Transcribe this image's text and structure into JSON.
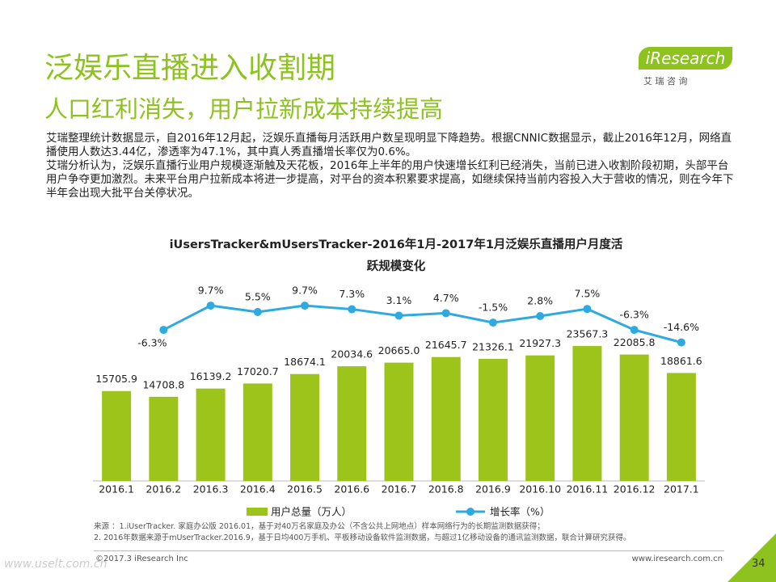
{
  "header": {
    "title": "泛娱乐直播进入收割期",
    "subtitle": "人口红利消失，用户拉新成本持续提高",
    "logo": "iResearch",
    "logo_sub": "艾 瑞 咨 询"
  },
  "body": [
    "艾瑞整理统计数据显示，自2016年12月起，泛娱乐直播每月活跃用户数呈现明显下降趋势。根据CNNIC数据显示，截止2016年12月，网络直播使用人数达3.44亿，渗透率为47.1%，其中真人秀直播增长率仅为0.6%。",
    "艾瑞分析认为，泛娱乐直播行业用户规模逐渐触及天花板，2016年上半年的用户快速增长红利已经消失，当前已进入收割阶段初期，头部平台用户争夺更加激烈。未来平台用户拉新成本将进一步提高，对平台的资本积累要求提高，如继续保持当前内容投入大于营收的情况，则在今年下半年会出现大批平台关停状况。"
  ],
  "chart_data": {
    "type": "bar",
    "title": "iUsersTracker&mUsersTracker-2016年1月-2017年1月泛娱乐直播用户月度活跃规模变化",
    "categories": [
      "2016.1",
      "2016.2",
      "2016.3",
      "2016.4",
      "2016.5",
      "2016.6",
      "2016.7",
      "2016.8",
      "2016.9",
      "2016.10",
      "2016.11",
      "2016.12",
      "2017.1"
    ],
    "series": [
      {
        "name": "用户总量（万人）",
        "color": "#9dc41a",
        "type": "bar",
        "values": [
          15705.9,
          14708.8,
          16139.2,
          17020.7,
          18674.1,
          20034.6,
          20665,
          21645.7,
          21326.1,
          21927.3,
          23567.3,
          22085.8,
          18861.6
        ],
        "value_labels": [
          "15705.9",
          "14708.8",
          "16139.2",
          "17020.7",
          "18674.1",
          "20034.6",
          "20665.0",
          "21645.7",
          "21326.1",
          "21927.3",
          "23567.3",
          "22085.8",
          "18861.6"
        ]
      },
      {
        "name": "增长率（%）",
        "color": "#2eaae1",
        "type": "line",
        "axis": "y2",
        "values": [
          null,
          -6.3,
          9.7,
          5.5,
          9.7,
          7.3,
          3.1,
          4.7,
          -1.5,
          2.8,
          7.5,
          -6.3,
          -14.6
        ],
        "value_labels": [
          null,
          "-6.3%",
          "9.7%",
          "5.5%",
          "9.7%",
          "7.3%",
          "3.1%",
          "4.7%",
          "-1.5%",
          "2.8%",
          "7.5%",
          "-6.3%",
          "-14.6%"
        ]
      }
    ],
    "ylim": [
      0,
      36000
    ],
    "y2lim": [
      -106,
      30
    ],
    "legend": "bottom"
  },
  "footer": {
    "sources": [
      "来源 ：1.iUserTracker. 家庭办公版 2016.01，基于对40万名家庭及办公（不含公共上网地点）样本网络行为的长期监测数据获得；",
      "2. 2016年数据来源于mUserTracker.2016.9，基于日均400万手机、平板移动设备软件监测数据，与超过1亿移动设备的通讯监测数据，联合计算研究获得。"
    ],
    "copyright": "©2017.3 iResearch Inc",
    "url": "www.iresearch.com.cn",
    "page": "34",
    "watermark": "www.uselt.com.cn"
  }
}
